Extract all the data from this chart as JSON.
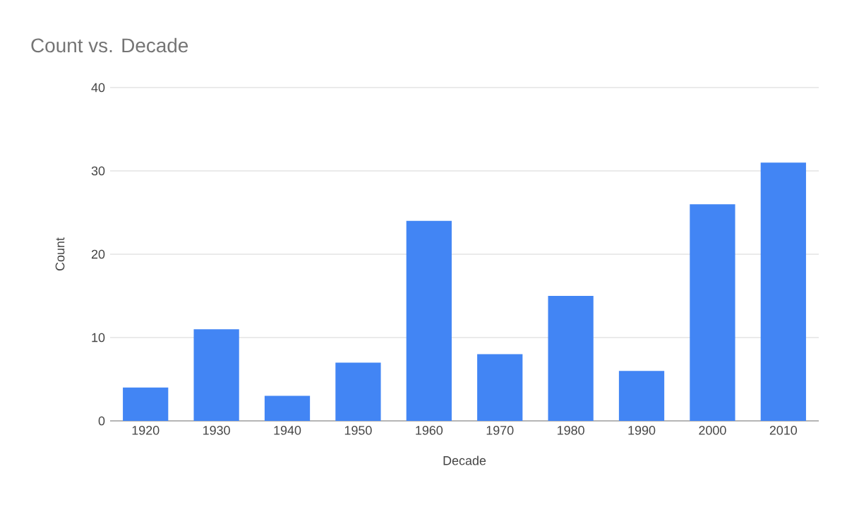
{
  "chart_data": {
    "type": "bar",
    "title": "Count vs. Decade",
    "xlabel": "Decade",
    "ylabel": "Count",
    "categories": [
      "1920",
      "1930",
      "1940",
      "1950",
      "1960",
      "1970",
      "1980",
      "1990",
      "2000",
      "2010"
    ],
    "values": [
      4,
      11,
      3,
      7,
      24,
      8,
      15,
      6,
      26,
      31
    ],
    "color": "#4285f4",
    "ylim": [
      0,
      40
    ],
    "yticks": [
      0,
      10,
      20,
      30,
      40
    ],
    "grid": "y"
  }
}
